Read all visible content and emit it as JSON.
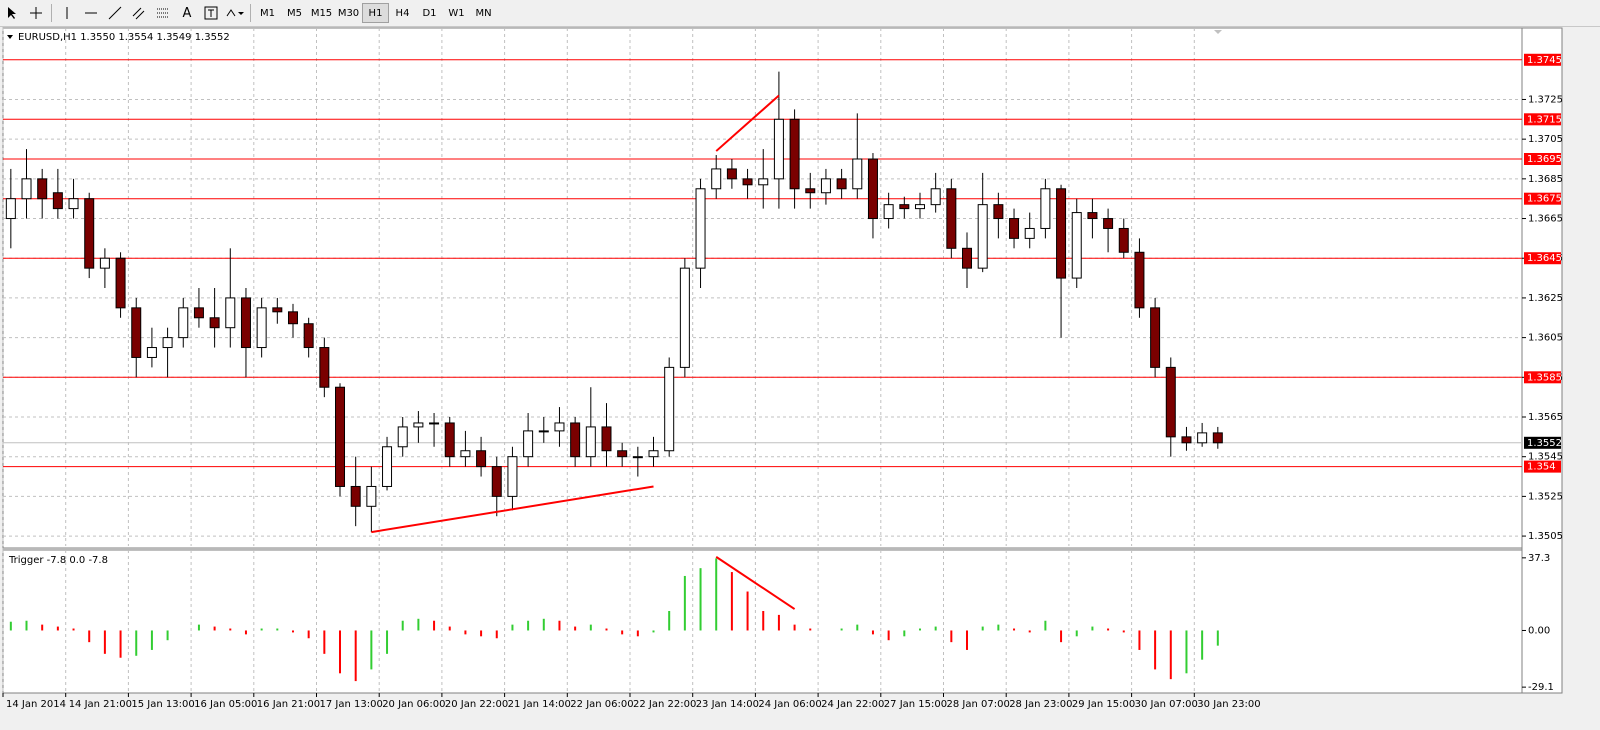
{
  "toolbar": {
    "text_tool": "A",
    "timeframes": [
      "M1",
      "M5",
      "M15",
      "M30",
      "H1",
      "H4",
      "D1",
      "W1",
      "MN"
    ],
    "active": "H1"
  },
  "chart_data": [
    {
      "type": "candlestick",
      "title": "EURUSD,H1  1.3550 1.3554 1.3549 1.3552",
      "categories": [
        "14 Jan 2014",
        null,
        null,
        null,
        "14 Jan 21:00",
        null,
        null,
        null,
        "15 Jan 13:00",
        null,
        null,
        null,
        "16 Jan 05:00",
        null,
        null,
        null,
        "16 Jan 21:00",
        null,
        null,
        null,
        "17 Jan 13:00",
        null,
        null,
        null,
        "20 Jan 06:00",
        null,
        null,
        null,
        "20 Jan 22:00",
        null,
        null,
        null,
        "21 Jan 14:00",
        null,
        null,
        null,
        "22 Jan 06:00",
        null,
        null,
        null,
        "22 Jan 22:00",
        null,
        null,
        null,
        "23 Jan 14:00",
        null,
        null,
        null,
        "24 Jan 06:00",
        null,
        null,
        null,
        "24 Jan 22:00",
        null,
        null,
        null,
        "27 Jan 15:00",
        null,
        null,
        null,
        "28 Jan 07:00",
        null,
        null,
        null,
        "28 Jan 23:00",
        null,
        null,
        null,
        "29 Jan 15:00",
        null,
        null,
        null,
        "30 Jan 07:00",
        null,
        null,
        null,
        "30 Jan 23:00",
        null
      ],
      "open": [
        1.3665,
        1.3675,
        1.3685,
        1.3678,
        1.367,
        1.3675,
        1.364,
        1.3645,
        1.362,
        1.3595,
        1.36,
        1.3605,
        1.362,
        1.3615,
        1.361,
        1.3625,
        1.36,
        1.362,
        1.3618,
        1.3612,
        1.36,
        1.358,
        1.353,
        1.352,
        1.353,
        1.355,
        1.356,
        1.3562,
        1.3562,
        1.3545,
        1.3548,
        1.354,
        1.3525,
        1.3545,
        1.3558,
        1.3558,
        1.3562,
        1.3545,
        1.356,
        1.3548,
        1.3545,
        1.3545,
        1.3548,
        1.359,
        1.364,
        1.368,
        1.369,
        1.3685,
        1.3682,
        1.3685,
        1.3715,
        1.368,
        1.3678,
        1.3685,
        1.368,
        1.3695,
        1.3665,
        1.3672,
        1.367,
        1.3672,
        1.368,
        1.365,
        1.364,
        1.3672,
        1.3665,
        1.3655,
        1.366,
        1.368,
        1.3635,
        1.3668,
        1.3665,
        1.366,
        1.3648,
        1.362,
        1.359,
        1.3555,
        1.3552,
        1.3557
      ],
      "high": [
        1.369,
        1.37,
        1.369,
        1.369,
        1.3685,
        1.3678,
        1.365,
        1.3648,
        1.3625,
        1.361,
        1.361,
        1.3625,
        1.363,
        1.363,
        1.365,
        1.363,
        1.3625,
        1.3625,
        1.3622,
        1.3615,
        1.3605,
        1.3582,
        1.3545,
        1.354,
        1.3555,
        1.3565,
        1.3568,
        1.3567,
        1.3565,
        1.3558,
        1.3555,
        1.3545,
        1.355,
        1.3567,
        1.3565,
        1.357,
        1.3565,
        1.358,
        1.3572,
        1.3552,
        1.355,
        1.3555,
        1.3595,
        1.3645,
        1.3685,
        1.3697,
        1.3695,
        1.369,
        1.37,
        1.3739,
        1.372,
        1.3688,
        1.369,
        1.369,
        1.3718,
        1.3698,
        1.3678,
        1.3676,
        1.3678,
        1.3688,
        1.3685,
        1.3658,
        1.3688,
        1.3678,
        1.367,
        1.3668,
        1.3685,
        1.3682,
        1.3675,
        1.3675,
        1.367,
        1.3665,
        1.3655,
        1.3625,
        1.3595,
        1.356,
        1.3562,
        1.356
      ],
      "low": [
        1.365,
        1.3665,
        1.3665,
        1.3665,
        1.3665,
        1.3635,
        1.363,
        1.3615,
        1.3585,
        1.359,
        1.3585,
        1.36,
        1.361,
        1.36,
        1.36,
        1.3585,
        1.3595,
        1.3612,
        1.3605,
        1.3595,
        1.3575,
        1.3525,
        1.351,
        1.3507,
        1.3528,
        1.3545,
        1.3552,
        1.355,
        1.354,
        1.354,
        1.3535,
        1.3515,
        1.3518,
        1.354,
        1.3552,
        1.355,
        1.354,
        1.354,
        1.354,
        1.354,
        1.3535,
        1.354,
        1.3545,
        1.3585,
        1.363,
        1.3675,
        1.368,
        1.3675,
        1.367,
        1.367,
        1.367,
        1.367,
        1.3672,
        1.3675,
        1.3675,
        1.3655,
        1.366,
        1.3665,
        1.3665,
        1.3668,
        1.3645,
        1.363,
        1.3638,
        1.3655,
        1.365,
        1.365,
        1.3655,
        1.3605,
        1.363,
        1.3655,
        1.3648,
        1.3645,
        1.3615,
        1.3585,
        1.3545,
        1.3548,
        1.355,
        1.3549
      ],
      "close": [
        1.3675,
        1.3685,
        1.3675,
        1.367,
        1.3675,
        1.364,
        1.3645,
        1.362,
        1.3595,
        1.36,
        1.3605,
        1.362,
        1.3615,
        1.361,
        1.3625,
        1.36,
        1.362,
        1.3618,
        1.3612,
        1.36,
        1.358,
        1.353,
        1.352,
        1.353,
        1.355,
        1.356,
        1.3562,
        1.3562,
        1.3545,
        1.3548,
        1.354,
        1.3525,
        1.3545,
        1.3558,
        1.3558,
        1.3562,
        1.3545,
        1.356,
        1.3548,
        1.3545,
        1.3545,
        1.3548,
        1.359,
        1.364,
        1.368,
        1.369,
        1.3685,
        1.3682,
        1.3685,
        1.3715,
        1.368,
        1.3678,
        1.3685,
        1.368,
        1.3695,
        1.3665,
        1.3672,
        1.367,
        1.3672,
        1.368,
        1.365,
        1.364,
        1.3672,
        1.3665,
        1.3655,
        1.366,
        1.368,
        1.3635,
        1.3668,
        1.3665,
        1.366,
        1.3648,
        1.362,
        1.359,
        1.3555,
        1.3552,
        1.3557,
        1.3552
      ],
      "ylim": [
        1.35,
        1.376
      ],
      "yticks": [
        1.3505,
        1.3525,
        1.3545,
        1.3565,
        1.3585,
        1.3605,
        1.3625,
        1.3645,
        1.3665,
        1.3685,
        1.3705,
        1.3725
      ],
      "grid": true,
      "bull_color": "#ffffff",
      "bear_color": "#7a0000",
      "wick_color": "#000000",
      "levels": [
        {
          "value": 1.3745,
          "color": "#ff0000"
        },
        {
          "value": 1.3715,
          "color": "#ff0000"
        },
        {
          "value": 1.3695,
          "color": "#ff0000"
        },
        {
          "value": 1.3675,
          "color": "#ff0000"
        },
        {
          "value": 1.3645,
          "color": "#ff0000"
        },
        {
          "value": 1.3585,
          "color": "#ff0000"
        },
        {
          "value": 1.354,
          "color": "#ff0000"
        }
      ],
      "current_price": {
        "value": 1.3552,
        "color": "#000000"
      },
      "trendlines": [
        {
          "x": [
            23,
            41
          ],
          "y": [
            1.3507,
            1.353
          ],
          "color": "#ff0000"
        },
        {
          "x": [
            45,
            49
          ],
          "y": [
            1.3699,
            1.3727
          ],
          "color": "#ff0000"
        }
      ]
    },
    {
      "type": "bar",
      "title": "Trigger -7.8 0.0 -7.8",
      "values": [
        4.5,
        5,
        3,
        2,
        1,
        -6,
        -12,
        -14,
        -13,
        -10,
        -5,
        0,
        3,
        2,
        1,
        -2,
        1,
        1,
        -1,
        -4,
        -12,
        -22,
        -26,
        -20,
        -12,
        5,
        6,
        5,
        2,
        -2,
        -3,
        -4,
        3,
        5,
        6,
        5,
        2,
        3,
        1,
        -2,
        -3,
        -1,
        10,
        28,
        32,
        37,
        30,
        20,
        10,
        8,
        3,
        1,
        0,
        1,
        3,
        -2,
        -5,
        -3,
        1,
        2,
        -6,
        -10,
        2,
        3,
        1,
        -1,
        5,
        -6,
        -3,
        2,
        1,
        -1,
        -10,
        -20,
        -25,
        -22,
        -15,
        -7.8
      ],
      "ylim": [
        -31.6,
        40.3
      ],
      "yticks": [
        37.3,
        {
          "value": 0,
          "label": "0.00"
        },
        -29.1
      ],
      "up_color": "#32cd32",
      "down_color": "#ff0000",
      "trendlines": [
        {
          "x": [
            45,
            50
          ],
          "y": [
            37.8,
            11
          ],
          "color": "#ff0000"
        }
      ]
    }
  ]
}
